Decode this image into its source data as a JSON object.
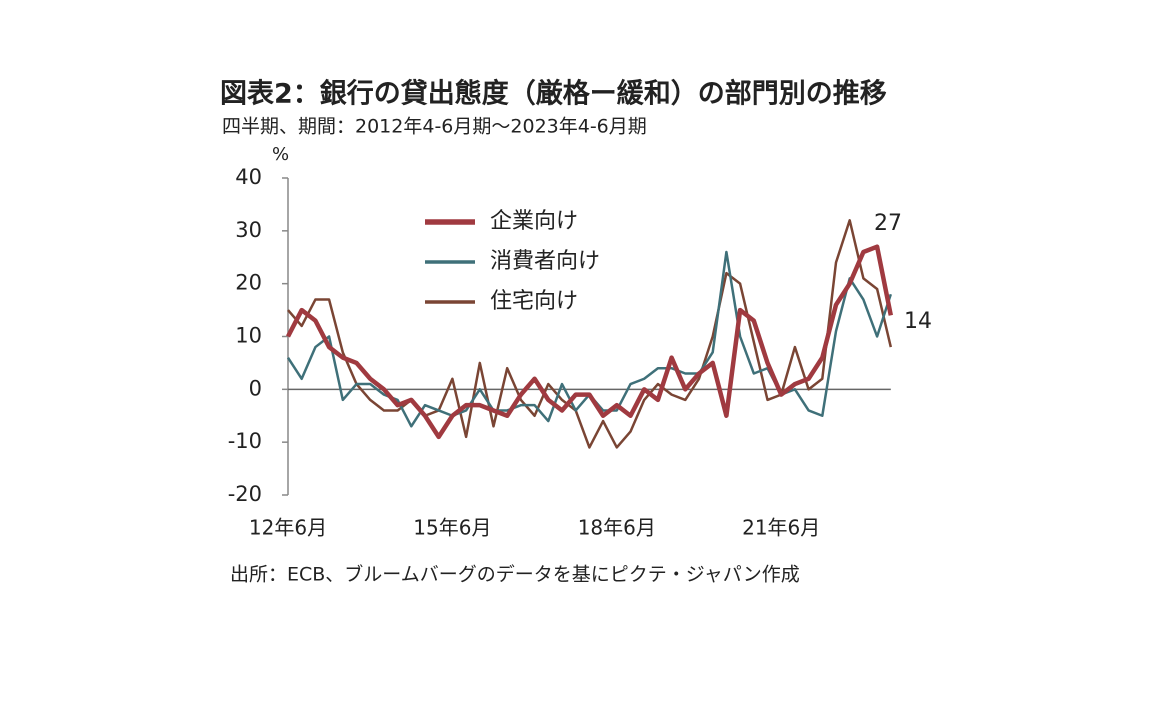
{
  "chart_data": {
    "type": "line",
    "title": "図表2：銀行の貸出態度（厳格ー緩和）の部門別の推移",
    "subtitle": "四半期、期間：2012年4-6月期～2023年4-6月期",
    "y_unit": "%",
    "source": "出所：ECB、ブルームバーグのデータを基にピクテ・ジャパン作成",
    "categories": [
      "12年6月",
      null,
      null,
      null,
      null,
      null,
      null,
      null,
      null,
      null,
      null,
      null,
      "15年6月",
      null,
      null,
      null,
      null,
      null,
      null,
      null,
      null,
      null,
      null,
      null,
      "18年6月",
      null,
      null,
      null,
      null,
      null,
      null,
      null,
      null,
      null,
      null,
      null,
      "21年6月",
      null,
      null,
      null,
      null,
      null,
      null,
      null,
      null
    ],
    "series": [
      {
        "name": "企業向け",
        "color": "#a03a40",
        "width": 4.5,
        "values": [
          10,
          15,
          13,
          8,
          6,
          5,
          2,
          0,
          -3,
          -2,
          -5,
          -9,
          -5,
          -3,
          -3,
          -4,
          -5,
          -1,
          2,
          -2,
          -4,
          -1,
          -1,
          -5,
          -3,
          -5,
          0,
          -2,
          6,
          0,
          3,
          5,
          -5,
          15,
          13,
          5,
          -1,
          1,
          2,
          6,
          16,
          20,
          26,
          27,
          14
        ]
      },
      {
        "name": "消費者向け",
        "color": "#3f7079",
        "width": 2.5,
        "values": [
          6,
          2,
          8,
          10,
          -2,
          1,
          1,
          -1,
          -2,
          -7,
          -3,
          -4,
          -5,
          -4,
          0,
          -4,
          -4,
          -3,
          -3,
          -6,
          1,
          -4,
          -1,
          -4,
          -4,
          1,
          2,
          4,
          4,
          3,
          3,
          7,
          26,
          10,
          3,
          4,
          -1,
          0,
          -4,
          -5,
          11,
          21,
          17,
          10,
          18
        ]
      },
      {
        "name": "住宅向け",
        "color": "#7a4534",
        "width": 2.5,
        "values": [
          15,
          12,
          17,
          17,
          7,
          1,
          -2,
          -4,
          -4,
          -2,
          -5,
          -4,
          2,
          -9,
          5,
          -7,
          4,
          -2,
          -5,
          1,
          -2,
          -4,
          -11,
          -6,
          -11,
          -8,
          -2,
          1,
          -1,
          -2,
          2,
          10,
          22,
          20,
          9,
          -2,
          -1,
          8,
          0,
          2,
          24,
          32,
          21,
          19,
          8
        ]
      }
    ],
    "annotations": [
      {
        "text": "27"
      },
      {
        "text": "14"
      }
    ],
    "ylim": [
      -20,
      40
    ],
    "yticks": [
      -20,
      -10,
      0,
      10,
      20,
      30,
      40
    ],
    "legend": "upper-left",
    "grid": false
  }
}
